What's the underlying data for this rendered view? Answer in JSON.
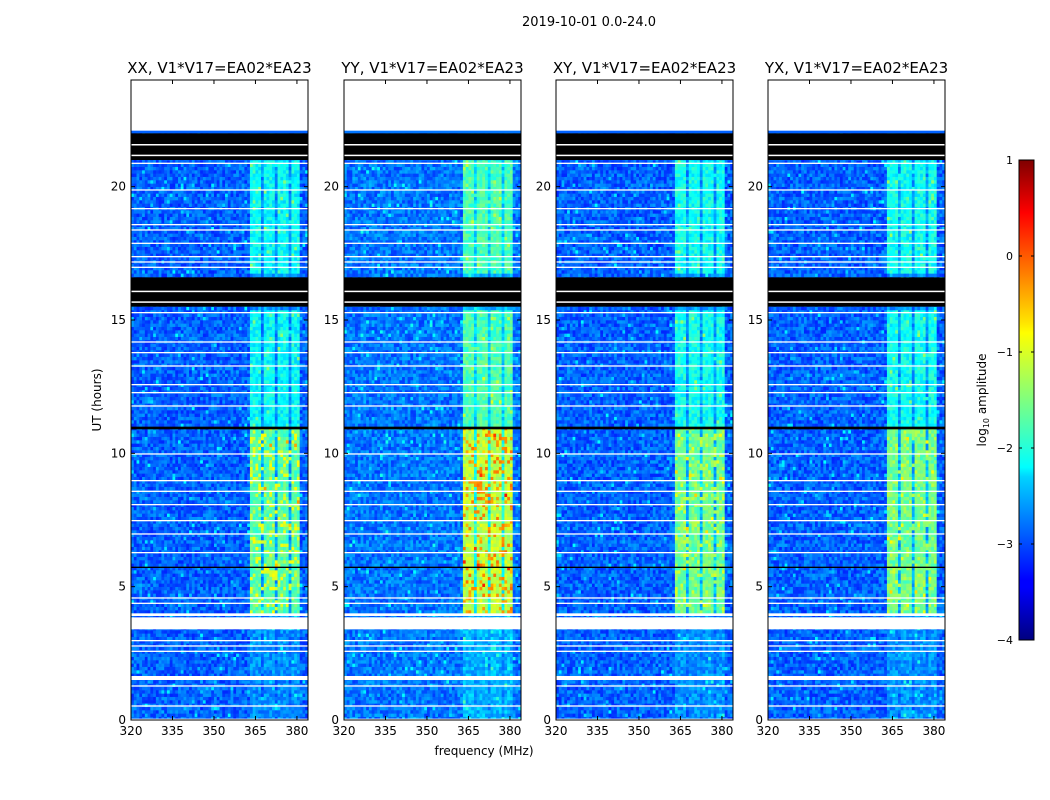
{
  "suptitle": "2019-10-01 0.0-24.0",
  "chart_data": {
    "type": "heatmap",
    "title": "2019-10-01 0.0-24.0",
    "xlabel": "frequency (MHz)",
    "ylabel": "UT (hours)",
    "xlim": [
      320,
      384
    ],
    "ylim": [
      0,
      24
    ],
    "xticks": [
      320,
      335,
      350,
      365,
      380
    ],
    "yticks": [
      0,
      5,
      10,
      15,
      20
    ],
    "colorbar": {
      "label": "log10 amplitude",
      "label_main": "log",
      "label_sub": "10",
      "label_rest": " amplitude",
      "range": [
        -4,
        1
      ],
      "ticks": [
        -4,
        -3,
        -2,
        -1,
        0,
        1
      ],
      "tick_labels": [
        "−4",
        "−3",
        "−2",
        "−1",
        "0",
        "1"
      ],
      "colormap": "jet"
    },
    "rfi_band_mhz": [
      363,
      381
    ],
    "blank_rows_ut": [
      [
        22.1,
        24.0
      ],
      [
        3.9,
        4.0
      ],
      [
        3.4,
        3.85
      ],
      [
        1.5,
        1.65
      ],
      [
        0.5,
        0.55
      ],
      [
        0.0,
        0.05
      ]
    ],
    "flagged_rows_ut": [
      [
        21.0,
        22.0
      ],
      [
        15.5,
        16.6
      ],
      [
        10.9,
        11.0
      ],
      [
        5.7,
        5.75
      ]
    ],
    "panels": [
      {
        "title": "XX, V1*V17=EA02*EA23",
        "base_level": -2.9,
        "rfi_level": -1.7,
        "peak_level": -1.0
      },
      {
        "title": "YY, V1*V17=EA02*EA23",
        "base_level": -2.8,
        "rfi_level": -1.2,
        "peak_level": -0.3
      },
      {
        "title": "XY, V1*V17=EA02*EA23",
        "base_level": -2.9,
        "rfi_level": -1.6,
        "peak_level": -1.2
      },
      {
        "title": "YX, V1*V17=EA02*EA23",
        "base_level": -2.9,
        "rfi_level": -1.6,
        "peak_level": -1.3
      }
    ]
  }
}
